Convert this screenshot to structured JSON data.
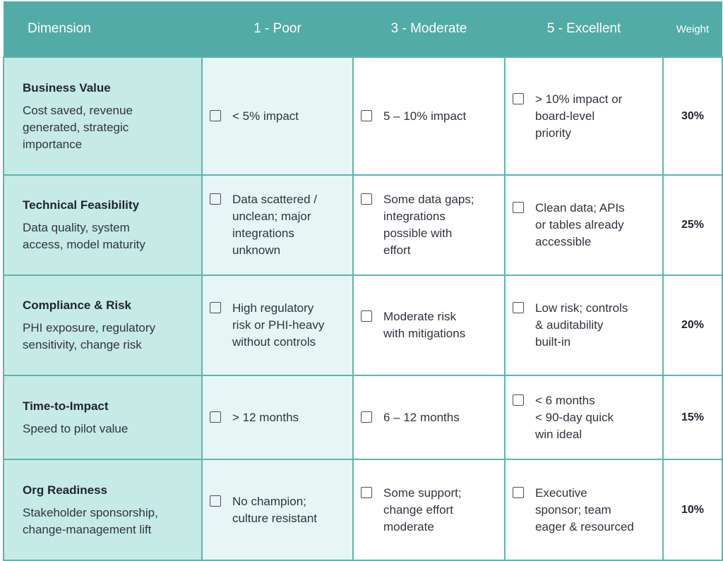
{
  "header": {
    "dimension": "Dimension",
    "poor": "1 - Poor",
    "moderate": "3 - Moderate",
    "excellent": "5 - Excellent",
    "weight": "Weight"
  },
  "rows": [
    {
      "title": "Business Value",
      "description": "Cost saved, revenue\ngenerated, strategic\nimportance",
      "poor": "< 5% impact",
      "moderate": "5 – 10% impact",
      "excellent": "> 10% impact or\nboard-level\npriority",
      "weight": "30%"
    },
    {
      "title": "Technical Feasibility",
      "description": "Data quality, system\naccess, model maturity",
      "poor": "Data scattered /\nunclean; major\nintegrations\nunknown",
      "moderate": "Some data gaps;\nintegrations\npossible with\neffort",
      "excellent": "Clean data; APIs\nor tables already\naccessible",
      "weight": "25%"
    },
    {
      "title": "Compliance & Risk",
      "description": "PHI exposure, regulatory\nsensitivity, change risk",
      "poor": "High regulatory\nrisk or PHI-heavy\nwithout controls",
      "moderate": "Moderate risk\nwith mitigations",
      "excellent": "Low risk; controls\n& auditability\nbuilt-in",
      "weight": "20%"
    },
    {
      "title": "Time-to-Impact",
      "description": "Speed to pilot value",
      "poor": "> 12 months",
      "moderate": "6 – 12 months",
      "excellent": "< 6 months\n< 90-day quick\nwin ideal",
      "weight": "15%"
    },
    {
      "title": "Org Readiness",
      "description": "Stakeholder sponsorship,\nchange-management lift",
      "poor": "No champion;\nculture resistant",
      "moderate": "Some support;\nchange effort\nmoderate",
      "excellent": "Executive\nsponsor; team\neager & resourced",
      "weight": "10%"
    }
  ]
}
